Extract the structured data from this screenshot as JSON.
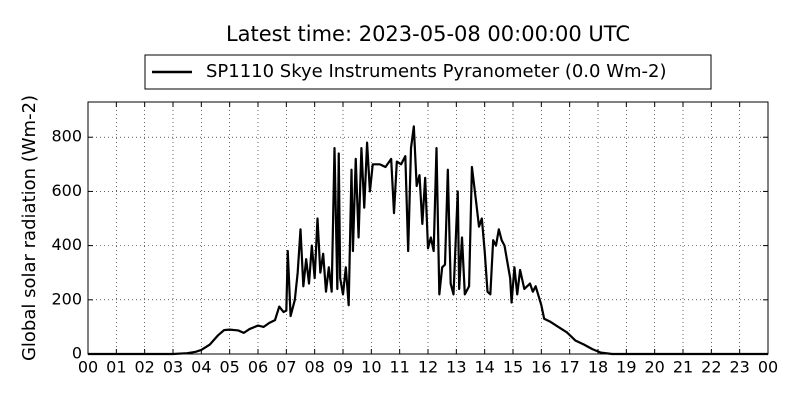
{
  "chart_data": {
    "type": "line",
    "title": "Latest time: 2023-05-08 00:00:00 UTC",
    "y_label": "Global solar radiation (Wm-2)",
    "legend_position": "top",
    "grid": true,
    "xlim": [
      0,
      24
    ],
    "ylim": [
      0,
      930
    ],
    "xticks": [
      {
        "value": 0,
        "label": "00"
      },
      {
        "value": 1,
        "label": "01"
      },
      {
        "value": 2,
        "label": "02"
      },
      {
        "value": 3,
        "label": "03"
      },
      {
        "value": 4,
        "label": "04"
      },
      {
        "value": 5,
        "label": "05"
      },
      {
        "value": 6,
        "label": "06"
      },
      {
        "value": 7,
        "label": "07"
      },
      {
        "value": 8,
        "label": "08"
      },
      {
        "value": 9,
        "label": "09"
      },
      {
        "value": 10,
        "label": "10"
      },
      {
        "value": 11,
        "label": "11"
      },
      {
        "value": 12,
        "label": "12"
      },
      {
        "value": 13,
        "label": "13"
      },
      {
        "value": 14,
        "label": "14"
      },
      {
        "value": 15,
        "label": "15"
      },
      {
        "value": 16,
        "label": "16"
      },
      {
        "value": 17,
        "label": "17"
      },
      {
        "value": 18,
        "label": "18"
      },
      {
        "value": 19,
        "label": "19"
      },
      {
        "value": 20,
        "label": "20"
      },
      {
        "value": 21,
        "label": "21"
      },
      {
        "value": 22,
        "label": "22"
      },
      {
        "value": 23,
        "label": "23"
      },
      {
        "value": 24,
        "label": "00"
      }
    ],
    "yticks": [
      0,
      200,
      400,
      600,
      800
    ],
    "x": [
      0,
      3.0,
      3.5,
      3.8,
      4.0,
      4.3,
      4.6,
      4.8,
      5.0,
      5.3,
      5.5,
      5.7,
      6.0,
      6.2,
      6.4,
      6.6,
      6.75,
      6.9,
      7.0,
      7.05,
      7.15,
      7.3,
      7.4,
      7.5,
      7.6,
      7.7,
      7.8,
      7.9,
      8.0,
      8.1,
      8.2,
      8.3,
      8.4,
      8.5,
      8.6,
      8.7,
      8.8,
      8.85,
      8.9,
      9.0,
      9.1,
      9.2,
      9.3,
      9.35,
      9.45,
      9.55,
      9.65,
      9.75,
      9.85,
      9.95,
      10.05,
      10.3,
      10.5,
      10.7,
      10.8,
      10.9,
      11.05,
      11.2,
      11.3,
      11.4,
      11.5,
      11.6,
      11.7,
      11.8,
      11.9,
      12.0,
      12.1,
      12.2,
      12.3,
      12.4,
      12.5,
      12.6,
      12.7,
      12.8,
      12.9,
      13.05,
      13.1,
      13.2,
      13.3,
      13.45,
      13.55,
      13.7,
      13.8,
      13.9,
      14.0,
      14.1,
      14.2,
      14.3,
      14.4,
      14.5,
      14.6,
      14.7,
      14.9,
      14.95,
      15.05,
      15.15,
      15.25,
      15.4,
      15.6,
      15.7,
      15.8,
      16.0,
      16.1,
      16.3,
      16.6,
      16.9,
      17.2,
      17.5,
      17.8,
      18.1,
      18.5,
      24
    ],
    "series": [
      {
        "name": "SP1110 Skye Instruments Pyranometer (0.0 Wm-2)",
        "color": "#000000",
        "values": [
          0,
          0,
          3,
          8,
          15,
          35,
          70,
          88,
          90,
          87,
          78,
          92,
          105,
          100,
          115,
          125,
          175,
          155,
          160,
          380,
          140,
          200,
          300,
          460,
          250,
          350,
          260,
          400,
          280,
          500,
          300,
          370,
          230,
          320,
          230,
          760,
          240,
          740,
          280,
          220,
          320,
          180,
          680,
          380,
          720,
          430,
          760,
          540,
          780,
          600,
          700,
          700,
          690,
          720,
          520,
          710,
          700,
          730,
          380,
          760,
          840,
          620,
          660,
          480,
          650,
          390,
          430,
          380,
          760,
          220,
          320,
          330,
          680,
          260,
          220,
          600,
          240,
          430,
          220,
          250,
          690,
          560,
          470,
          500,
          380,
          230,
          220,
          420,
          400,
          460,
          420,
          400,
          280,
          190,
          320,
          220,
          310,
          240,
          260,
          230,
          250,
          180,
          130,
          120,
          100,
          80,
          50,
          35,
          18,
          5,
          0,
          0
        ]
      }
    ]
  }
}
